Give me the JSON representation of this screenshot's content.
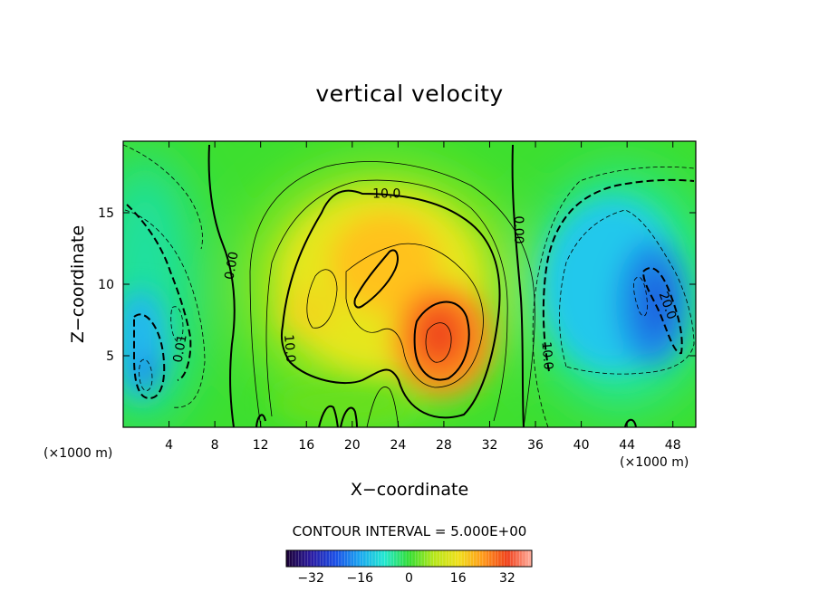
{
  "chart_data": {
    "type": "heatmap",
    "title": "vertical velocity",
    "xlabel": "X−coordinate",
    "ylabel": "Z−coordinate",
    "x_unit": "(×1000 m)",
    "z_unit": "(×1000 m)",
    "xlim": [
      0,
      50
    ],
    "ylim": [
      0,
      20
    ],
    "x_ticks": [
      4,
      8,
      12,
      16,
      20,
      24,
      28,
      32,
      36,
      40,
      44,
      48
    ],
    "x_tick_labels": [
      "4",
      "8",
      "12",
      "16",
      "20",
      "24",
      "28",
      "32",
      "36",
      "40",
      "44",
      "48"
    ],
    "y_ticks": [
      5,
      10,
      15
    ],
    "y_tick_labels": [
      "5",
      "10",
      "15"
    ],
    "contour_interval_text": "CONTOUR INTERVAL = 5.000E+00",
    "colorbar": {
      "range": [
        -40,
        40
      ],
      "ticks": [
        -32,
        -16,
        0,
        16,
        32
      ],
      "tick_labels": [
        "−32",
        "−16",
        "0",
        "16",
        "32"
      ]
    },
    "contour_labels": [
      {
        "text": "10.0",
        "x": 23.0,
        "z": 16.3,
        "rotate": 0
      },
      {
        "text": "0.00",
        "x": 34.5,
        "z": 13.8,
        "rotate": 90
      },
      {
        "text": "0.00",
        "x": 9.5,
        "z": 11.3,
        "rotate": -80
      },
      {
        "text": "10.0",
        "x": 14.5,
        "z": 5.5,
        "rotate": 85
      },
      {
        "text": "0.01",
        "x": 5.0,
        "z": 5.5,
        "rotate": -80
      },
      {
        "text": "10.0",
        "x": 37.0,
        "z": 5.0,
        "rotate": 85
      },
      {
        "text": "20.0",
        "x": 47.5,
        "z": 8.5,
        "rotate": 70
      }
    ],
    "features": [
      {
        "type": "updraft",
        "x": 27.5,
        "z": 6.5,
        "peak": 33
      },
      {
        "type": "updraft",
        "x": 22.5,
        "z": 11.0,
        "peak": 22
      },
      {
        "type": "updraft",
        "x": 19.5,
        "z": 8.0,
        "peak": 15
      },
      {
        "type": "downdraft",
        "x": 46.5,
        "z": 8.5,
        "peak": -25
      },
      {
        "type": "downdraft",
        "x": 2.0,
        "z": 5.0,
        "peak": -20
      }
    ]
  }
}
